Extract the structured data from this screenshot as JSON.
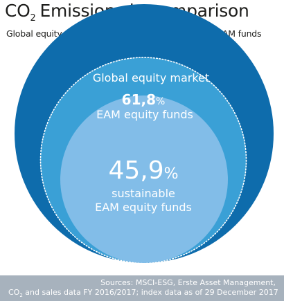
{
  "title": {
    "prefix": "CO",
    "sub": "2",
    "rest": "Emissions in comparison"
  },
  "subtitle": "Global equity market vs. Erste AM vs. sustainable EAM funds",
  "colors": {
    "outer": "#0e6cac",
    "middle": "#3aa0d6",
    "inner": "#82bde8",
    "footer": "#a7b2bd",
    "text": "#1d1d1b"
  },
  "chart_data": {
    "type": "nested-circles",
    "title": "CO2 Emissions in comparison",
    "subtitle": "Global equity market vs. Erste AM vs. sustainable EAM funds",
    "series": [
      {
        "name": "Global equity market",
        "value": 100,
        "value_label": ""
      },
      {
        "name": "EAM equity funds",
        "value": 61.8,
        "value_label": "61,8%"
      },
      {
        "name": "sustainable EAM equity funds",
        "value": 45.9,
        "value_label": "45,9%"
      }
    ],
    "labels": {
      "outer": "Global equity market",
      "middle_value": "61,8",
      "middle_unit": "%",
      "middle_name": "EAM equity funds",
      "inner_value": "45,9",
      "inner_unit": "%",
      "inner_name_1": "sustainable",
      "inner_name_2": "EAM equity funds"
    }
  },
  "footer": {
    "line1": "Sources: MSCI-ESG, Erste Asset Management,",
    "line2_prefix": "CO",
    "line2_sub": "2",
    "line2_rest": " and sales data FY 2016/2017; index data as of 29 December 2017"
  }
}
